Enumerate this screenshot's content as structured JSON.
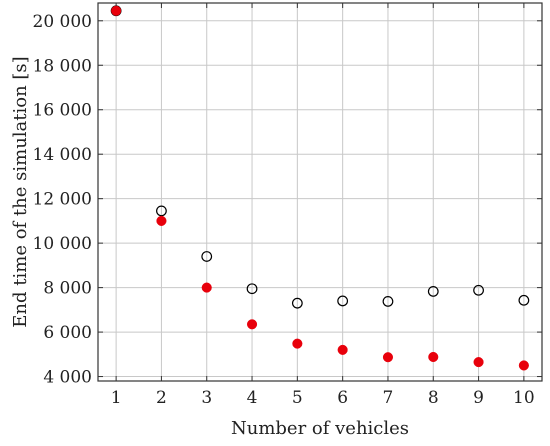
{
  "chart_data": {
    "type": "scatter",
    "title": "",
    "xlabel": "Number of vehicles",
    "ylabel": "End time of the simulation [s]",
    "x": [
      1,
      2,
      3,
      4,
      5,
      6,
      7,
      8,
      9,
      10
    ],
    "xlim": [
      0.6,
      10.4
    ],
    "ylim": [
      3800,
      20800
    ],
    "x_ticks": [
      1,
      2,
      3,
      4,
      5,
      6,
      7,
      8,
      9,
      10
    ],
    "x_tick_labels": [
      "1",
      "2",
      "3",
      "4",
      "5",
      "6",
      "7",
      "8",
      "9",
      "10"
    ],
    "y_ticks": [
      4000,
      6000,
      8000,
      10000,
      12000,
      14000,
      16000,
      18000,
      20000
    ],
    "y_tick_labels": [
      "4 000",
      "6 000",
      "8 000",
      "10 000",
      "12 000",
      "14 000",
      "16 000",
      "18 000",
      "20 000"
    ],
    "grid": true,
    "series": [
      {
        "marker": "hollow-circle",
        "color": "#000000",
        "values": [
          20450,
          11450,
          9400,
          7950,
          7300,
          7400,
          7380,
          7830,
          7880,
          7430
        ]
      },
      {
        "marker": "filled-circle",
        "color": "#e8000b",
        "values": [
          20450,
          11000,
          8000,
          6350,
          5480,
          5200,
          4870,
          4880,
          4650,
          4500
        ]
      }
    ]
  }
}
